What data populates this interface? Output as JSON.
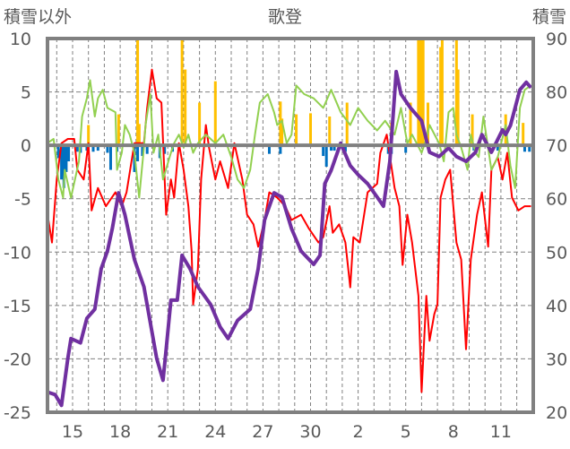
{
  "chart_data": {
    "type": "line",
    "title": "歌登",
    "ylabel_left": "積雪以外",
    "ylabel_right": "積雪",
    "xlabel": "",
    "xlim_days": [
      -1.6,
      29.0
    ],
    "x_ticks": [
      {
        "day": 0,
        "label": "15"
      },
      {
        "day": 3,
        "label": "18"
      },
      {
        "day": 6,
        "label": "21"
      },
      {
        "day": 9,
        "label": "24"
      },
      {
        "day": 12,
        "label": "27"
      },
      {
        "day": 15,
        "label": "30"
      },
      {
        "day": 18,
        "label": "2"
      },
      {
        "day": 21,
        "label": "5"
      },
      {
        "day": 24,
        "label": "8"
      },
      {
        "day": 27,
        "label": "11"
      }
    ],
    "ylim_left": [
      -25,
      10
    ],
    "y_ticks_left": [
      "10",
      "5",
      "0",
      "-5",
      "-10",
      "-15",
      "-20",
      "-25"
    ],
    "ylim_right": [
      20,
      90
    ],
    "y_ticks_right": [
      "90",
      "80",
      "70",
      "60",
      "50",
      "40",
      "30",
      "20"
    ],
    "grid": true,
    "colors": {
      "red": "#ff0000",
      "green": "#92d050",
      "purple": "#7030a0",
      "orange": "#ffc000",
      "blue": "#0070c0",
      "axis": "#808080",
      "text": "#595959"
    },
    "series": [
      {
        "name": "red-line",
        "axis": "left",
        "color": "#ff0000",
        "points": [
          [
            -1.6,
            -6.3
          ],
          [
            -1.3,
            -9.1
          ],
          [
            -1.0,
            -3.2
          ],
          [
            -0.7,
            0.2
          ],
          [
            -0.3,
            0.6
          ],
          [
            0.1,
            0.6
          ],
          [
            0.3,
            -2.3
          ],
          [
            0.7,
            -3.2
          ],
          [
            1.0,
            0.2
          ],
          [
            1.2,
            -6.1
          ],
          [
            1.6,
            -4.0
          ],
          [
            2.1,
            -5.7
          ],
          [
            2.7,
            -4.4
          ],
          [
            3.1,
            -5.7
          ],
          [
            3.4,
            -4.4
          ],
          [
            3.9,
            0.2
          ],
          [
            4.5,
            0.2
          ],
          [
            4.7,
            3.5
          ],
          [
            5.0,
            7.1
          ],
          [
            5.3,
            4.4
          ],
          [
            5.6,
            4.0
          ],
          [
            5.9,
            -6.5
          ],
          [
            6.2,
            -3.2
          ],
          [
            6.4,
            -4.9
          ],
          [
            6.7,
            0.2
          ],
          [
            7.0,
            -2.3
          ],
          [
            7.3,
            -5.7
          ],
          [
            7.5,
            -9.9
          ],
          [
            7.6,
            -14.9
          ],
          [
            7.9,
            -11.6
          ],
          [
            8.1,
            -3.2
          ],
          [
            8.4,
            1.9
          ],
          [
            8.6,
            -0.2
          ],
          [
            9.0,
            -3.2
          ],
          [
            9.3,
            -1.5
          ],
          [
            9.8,
            -4.0
          ],
          [
            10.2,
            0.2
          ],
          [
            10.7,
            -3.2
          ],
          [
            11.0,
            -6.5
          ],
          [
            11.4,
            -7.4
          ],
          [
            11.7,
            -9.5
          ],
          [
            12.1,
            -7.0
          ],
          [
            12.4,
            -4.4
          ],
          [
            12.9,
            -4.9
          ],
          [
            13.4,
            -5.7
          ],
          [
            13.8,
            -7.0
          ],
          [
            14.4,
            -6.5
          ],
          [
            14.9,
            -7.8
          ],
          [
            15.5,
            -9.1
          ],
          [
            15.8,
            -8.6
          ],
          [
            16.2,
            -5.7
          ],
          [
            16.4,
            -8.2
          ],
          [
            16.8,
            -7.4
          ],
          [
            17.2,
            -9.1
          ],
          [
            17.5,
            -13.3
          ],
          [
            17.7,
            -8.6
          ],
          [
            18.1,
            -9.1
          ],
          [
            18.6,
            -4.4
          ],
          [
            19.2,
            -3.6
          ],
          [
            19.4,
            -0.7
          ],
          [
            19.8,
            1.0
          ],
          [
            20.3,
            -4.0
          ],
          [
            20.6,
            -5.7
          ],
          [
            20.8,
            -11.2
          ],
          [
            21.1,
            -6.5
          ],
          [
            21.4,
            -9.1
          ],
          [
            21.8,
            -14.1
          ],
          [
            22.0,
            -23.1
          ],
          [
            22.3,
            -14.1
          ],
          [
            22.5,
            -18.3
          ],
          [
            22.8,
            -15.8
          ],
          [
            23.0,
            -14.9
          ],
          [
            23.2,
            -4.9
          ],
          [
            23.5,
            -3.2
          ],
          [
            23.8,
            -2.3
          ],
          [
            24.0,
            -5.7
          ],
          [
            24.2,
            -9.1
          ],
          [
            24.5,
            -10.7
          ],
          [
            24.8,
            -19.1
          ],
          [
            25.1,
            -10.7
          ],
          [
            25.5,
            -6.5
          ],
          [
            25.8,
            -4.4
          ],
          [
            26.2,
            -9.5
          ],
          [
            26.4,
            -2.3
          ],
          [
            26.8,
            -1.1
          ],
          [
            27.1,
            -3.2
          ],
          [
            27.4,
            -0.7
          ],
          [
            27.7,
            -4.9
          ],
          [
            28.1,
            -6.1
          ],
          [
            28.5,
            -5.7
          ],
          [
            28.9,
            -5.7
          ]
        ]
      },
      {
        "name": "green-line",
        "axis": "left",
        "color": "#92d050",
        "points": [
          [
            -1.6,
            0.2
          ],
          [
            -1.2,
            0.6
          ],
          [
            -0.9,
            -3.2
          ],
          [
            -0.6,
            -4.9
          ],
          [
            -0.5,
            -2.3
          ],
          [
            -0.1,
            -4.9
          ],
          [
            0.4,
            -1.5
          ],
          [
            0.6,
            2.7
          ],
          [
            0.9,
            4.4
          ],
          [
            1.1,
            6.1
          ],
          [
            1.4,
            2.7
          ],
          [
            1.6,
            4.4
          ],
          [
            1.9,
            5.2
          ],
          [
            2.2,
            3.5
          ],
          [
            2.7,
            3.1
          ],
          [
            2.8,
            -2.3
          ],
          [
            3.1,
            -0.7
          ],
          [
            3.3,
            1.9
          ],
          [
            3.6,
            1.0
          ],
          [
            3.9,
            -0.7
          ],
          [
            4.2,
            -4.9
          ],
          [
            4.5,
            -0.2
          ],
          [
            4.6,
            1.9
          ],
          [
            4.9,
            4.8
          ],
          [
            5.1,
            -0.7
          ],
          [
            5.4,
            1.0
          ],
          [
            5.7,
            -3.2
          ],
          [
            6.2,
            -0.7
          ],
          [
            6.4,
            0.2
          ],
          [
            6.7,
            1.0
          ],
          [
            7.0,
            -0.2
          ],
          [
            7.3,
            1.0
          ],
          [
            7.6,
            -0.7
          ],
          [
            7.9,
            0.2
          ],
          [
            8.4,
            1.0
          ],
          [
            9.0,
            0.2
          ],
          [
            9.5,
            1.0
          ],
          [
            10.0,
            -1.1
          ],
          [
            10.4,
            -3.2
          ],
          [
            10.8,
            -4.0
          ],
          [
            11.2,
            -2.3
          ],
          [
            11.5,
            1.0
          ],
          [
            11.8,
            4.0
          ],
          [
            12.3,
            4.8
          ],
          [
            12.7,
            3.1
          ],
          [
            12.9,
            1.9
          ],
          [
            13.2,
            2.3
          ],
          [
            13.5,
            0.2
          ],
          [
            13.8,
            1.0
          ],
          [
            14.1,
            5.6
          ],
          [
            14.6,
            4.8
          ],
          [
            15.2,
            4.4
          ],
          [
            15.8,
            3.5
          ],
          [
            16.3,
            5.2
          ],
          [
            16.9,
            3.1
          ],
          [
            17.5,
            1.9
          ],
          [
            18.0,
            3.5
          ],
          [
            18.6,
            2.3
          ],
          [
            19.2,
            1.4
          ],
          [
            19.7,
            2.3
          ],
          [
            20.3,
            1.0
          ],
          [
            20.7,
            3.5
          ],
          [
            21.1,
            0.2
          ],
          [
            21.4,
            1.0
          ],
          [
            22.0,
            -0.7
          ],
          [
            22.3,
            0.6
          ],
          [
            22.5,
            1.9
          ],
          [
            23.1,
            0.2
          ],
          [
            23.4,
            -1.5
          ],
          [
            23.7,
            3.1
          ],
          [
            24.0,
            3.5
          ],
          [
            24.2,
            1.0
          ],
          [
            24.5,
            -0.2
          ],
          [
            24.9,
            -2.3
          ],
          [
            25.1,
            1.0
          ],
          [
            25.4,
            -0.7
          ],
          [
            25.6,
            -1.1
          ],
          [
            25.9,
            2.7
          ],
          [
            26.4,
            -2.3
          ],
          [
            26.8,
            -1.1
          ],
          [
            27.3,
            1.9
          ],
          [
            27.6,
            -1.9
          ],
          [
            27.9,
            -4.0
          ],
          [
            28.2,
            3.5
          ],
          [
            28.5,
            5.2
          ],
          [
            28.9,
            5.6
          ]
        ]
      },
      {
        "name": "purple-snow-depth",
        "axis": "right",
        "color": "#7030a0",
        "points": [
          [
            -1.6,
            23.8
          ],
          [
            -1.1,
            23.3
          ],
          [
            -0.7,
            21.3
          ],
          [
            -0.3,
            30.1
          ],
          [
            -0.1,
            33.8
          ],
          [
            0.5,
            33.0
          ],
          [
            0.9,
            37.6
          ],
          [
            1.4,
            39.3
          ],
          [
            1.8,
            46.9
          ],
          [
            2.2,
            50.2
          ],
          [
            2.5,
            54.4
          ],
          [
            2.9,
            61.1
          ],
          [
            3.3,
            57.0
          ],
          [
            3.9,
            48.6
          ],
          [
            4.5,
            43.5
          ],
          [
            5.0,
            35.1
          ],
          [
            5.3,
            30.1
          ],
          [
            5.7,
            26.0
          ],
          [
            5.9,
            31.8
          ],
          [
            6.2,
            41.0
          ],
          [
            6.6,
            41.0
          ],
          [
            6.9,
            49.4
          ],
          [
            7.4,
            46.9
          ],
          [
            7.9,
            43.5
          ],
          [
            8.7,
            40.2
          ],
          [
            9.3,
            36.0
          ],
          [
            9.8,
            33.8
          ],
          [
            10.4,
            37.2
          ],
          [
            11.2,
            39.3
          ],
          [
            11.7,
            46.9
          ],
          [
            12.1,
            56.0
          ],
          [
            12.7,
            61.1
          ],
          [
            13.2,
            60.3
          ],
          [
            13.8,
            54.4
          ],
          [
            14.4,
            50.2
          ],
          [
            15.2,
            47.7
          ],
          [
            15.6,
            49.4
          ],
          [
            15.9,
            62.8
          ],
          [
            16.3,
            65.3
          ],
          [
            16.9,
            70.4
          ],
          [
            17.5,
            66.2
          ],
          [
            18.0,
            64.5
          ],
          [
            18.6,
            62.8
          ],
          [
            19.2,
            60.3
          ],
          [
            19.6,
            58.6
          ],
          [
            20.0,
            67.0
          ],
          [
            20.4,
            83.8
          ],
          [
            20.7,
            79.6
          ],
          [
            21.3,
            77.0
          ],
          [
            22.0,
            74.6
          ],
          [
            22.5,
            68.7
          ],
          [
            23.1,
            67.9
          ],
          [
            23.7,
            69.5
          ],
          [
            24.2,
            67.9
          ],
          [
            24.8,
            67.0
          ],
          [
            25.4,
            68.7
          ],
          [
            25.8,
            72.0
          ],
          [
            26.4,
            68.7
          ],
          [
            27.1,
            72.9
          ],
          [
            27.3,
            72.0
          ],
          [
            27.6,
            73.7
          ],
          [
            28.2,
            80.4
          ],
          [
            28.6,
            81.8
          ],
          [
            28.9,
            80.8
          ]
        ]
      }
    ],
    "bars": [
      {
        "name": "orange-bars",
        "axis": "left",
        "color": "#ffc000",
        "points": [
          [
            1.0,
            1.9
          ],
          [
            2.9,
            2.9
          ],
          [
            4.1,
            10
          ],
          [
            4.2,
            2.0
          ],
          [
            6.9,
            10
          ],
          [
            7.1,
            7.1
          ],
          [
            8.0,
            4.0
          ],
          [
            9.0,
            6.0
          ],
          [
            13.1,
            4.1
          ],
          [
            13.2,
            2.5
          ],
          [
            14.1,
            2.9
          ],
          [
            15.0,
            3.0
          ],
          [
            16.2,
            2.7
          ],
          [
            17.3,
            4.0
          ],
          [
            20.1,
            2.1
          ],
          [
            21.3,
            4.0
          ],
          [
            21.8,
            10
          ],
          [
            21.95,
            10
          ],
          [
            22.1,
            10
          ],
          [
            22.4,
            4.0
          ],
          [
            23.2,
            9.2
          ],
          [
            23.3,
            10
          ],
          [
            24.2,
            10
          ],
          [
            24.3,
            7.1
          ],
          [
            25.2,
            2.9
          ],
          [
            27.3,
            2.9
          ],
          [
            28.4,
            2.1
          ]
        ]
      },
      {
        "name": "blue-bars",
        "axis": "left",
        "color": "#0070c0",
        "points": [
          [
            -0.9,
            -1.2
          ],
          [
            -0.7,
            -3.2
          ],
          [
            -0.55,
            -4.0
          ],
          [
            -0.4,
            -2.5
          ],
          [
            -0.25,
            -1.5
          ],
          [
            0.3,
            -0.6
          ],
          [
            0.5,
            -0.7
          ],
          [
            0.9,
            -0.5
          ],
          [
            1.3,
            -0.6
          ],
          [
            1.6,
            -0.5
          ],
          [
            2.2,
            -0.7
          ],
          [
            2.4,
            -2.3
          ],
          [
            2.8,
            -0.6
          ],
          [
            3.9,
            -2.5
          ],
          [
            4.1,
            -1.5
          ],
          [
            4.4,
            -1.0
          ],
          [
            4.7,
            -0.8
          ],
          [
            5.5,
            -1.2
          ],
          [
            5.8,
            -0.8
          ],
          [
            6.3,
            -0.6
          ],
          [
            12.4,
            -0.8
          ],
          [
            13.1,
            -0.8
          ],
          [
            15.8,
            -1.0
          ],
          [
            16.0,
            -2.0
          ],
          [
            16.3,
            -0.5
          ],
          [
            16.5,
            -0.5
          ],
          [
            17.2,
            -0.6
          ],
          [
            19.9,
            -0.8
          ],
          [
            20.1,
            -0.8
          ],
          [
            21.0,
            -0.7
          ],
          [
            25.3,
            -0.5
          ],
          [
            26.8,
            -0.5
          ],
          [
            28.5,
            -0.6
          ],
          [
            28.8,
            -0.6
          ]
        ]
      }
    ]
  }
}
